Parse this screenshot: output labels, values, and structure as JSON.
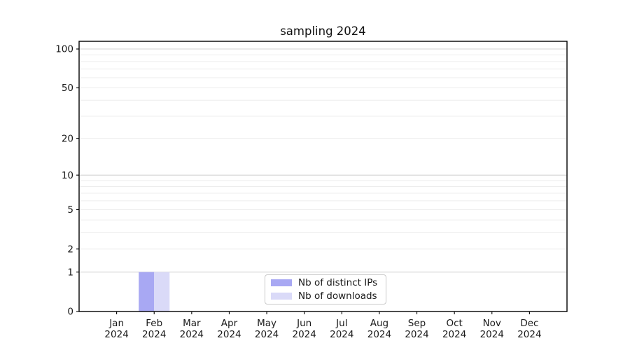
{
  "figure": {
    "background": "#ffffff"
  },
  "chart_data": {
    "type": "bar",
    "title": "sampling 2024",
    "categories": [
      "Jan 2024",
      "Feb 2024",
      "Mar 2024",
      "Apr 2024",
      "May 2024",
      "Jun 2024",
      "Jul 2024",
      "Aug 2024",
      "Sep 2024",
      "Oct 2024",
      "Nov 2024",
      "Dec 2024"
    ],
    "series": [
      {
        "name": "Nb of distinct IPs",
        "color": "#a8a8f3",
        "values": [
          0,
          1,
          0,
          0,
          0,
          0,
          0,
          0,
          0,
          0,
          0,
          0
        ]
      },
      {
        "name": "Nb of downloads",
        "color": "#dadaf8",
        "values": [
          0,
          1,
          0,
          0,
          0,
          0,
          0,
          0,
          0,
          0,
          0,
          0
        ]
      }
    ],
    "xlabel": "",
    "ylabel": "",
    "yscale": "log1p-symlog",
    "ylim": [
      0,
      114
    ],
    "yticks": [
      0,
      1,
      2,
      5,
      10,
      20,
      50,
      100
    ],
    "grid": {
      "on": true,
      "major_values": [
        1,
        10,
        100
      ],
      "minor_values": [
        2,
        3,
        4,
        5,
        6,
        7,
        8,
        9,
        20,
        30,
        40,
        50,
        60,
        70,
        80,
        90
      ],
      "major_color": "#d4d4d4",
      "minor_color": "#ededed"
    },
    "legend": {
      "position": "lower center",
      "border_color": "#c9c9c9",
      "background": "#ffffff"
    },
    "axis_color": "#000000",
    "text_color": "#1a1a1a"
  }
}
